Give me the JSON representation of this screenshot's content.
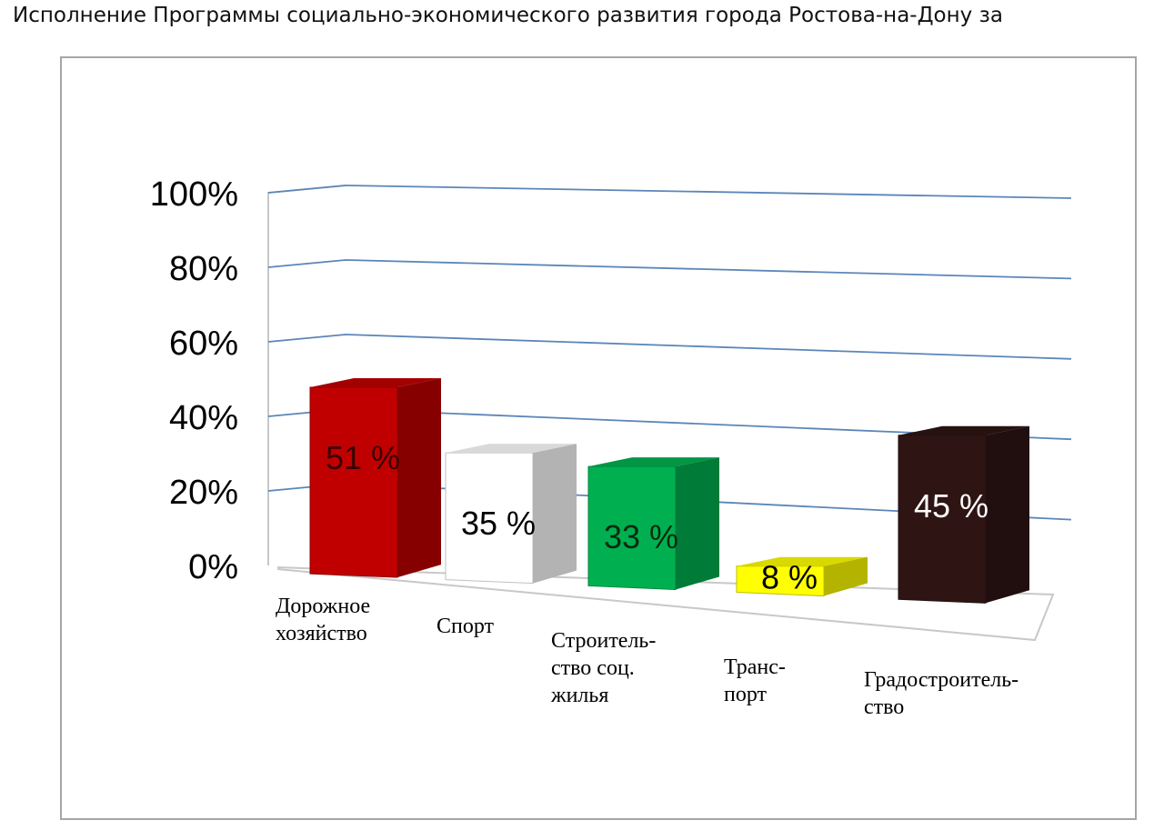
{
  "title": "Исполнение Программы социально-экономического развития города Ростова-на-Дону за",
  "chart_data": {
    "type": "bar",
    "title": "Исполнение Программы социально-экономического развития города Ростова-на-Дону за",
    "xlabel": "",
    "ylabel": "",
    "ylim": [
      0,
      100
    ],
    "y_ticks": [
      "0%",
      "20%",
      "40%",
      "60%",
      "80%",
      "100%"
    ],
    "categories": [
      [
        "Дорожное",
        "хозяйство"
      ],
      [
        "Спорт"
      ],
      [
        "Строитель-",
        "ство соц.",
        "жилья"
      ],
      [
        "Транс-",
        "порт"
      ],
      [
        "Градостроитель-",
        "ство"
      ]
    ],
    "values": [
      51,
      35,
      33,
      8,
      45
    ],
    "data_labels": [
      "51 %",
      "35 %",
      "33 %",
      "8 %",
      "45 %"
    ],
    "colors": [
      "#c00000",
      "#ffffff",
      "#00b050",
      "#ffff00",
      "#2f1414"
    ],
    "label_colors": [
      "#3a0000",
      "#000000",
      "#0a2a10",
      "#000000",
      "#ffffff"
    ],
    "grid": true,
    "legend": "none",
    "style": "3d-column"
  }
}
